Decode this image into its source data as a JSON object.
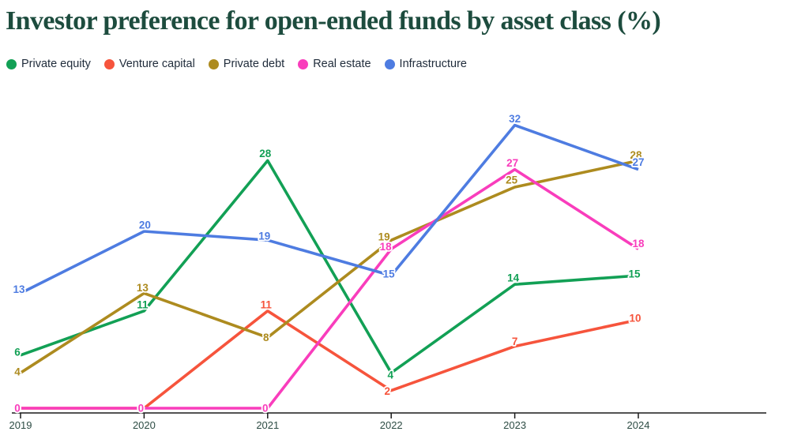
{
  "title": "Investor preference for open-ended funds by asset class (%)",
  "chart_data": {
    "type": "line",
    "x": [
      "2019",
      "2020",
      "2021",
      "2022",
      "2023",
      "2024"
    ],
    "series": [
      {
        "name": "Private equity",
        "color": "#12a055",
        "values": [
          6,
          11,
          28,
          4,
          14,
          15
        ]
      },
      {
        "name": "Venture capital",
        "color": "#f6543c",
        "values": [
          0,
          0,
          11,
          2,
          7,
          10
        ]
      },
      {
        "name": "Private debt",
        "color": "#ad8b1f",
        "values": [
          4,
          13,
          8,
          19,
          25,
          28
        ]
      },
      {
        "name": "Real estate",
        "color": "#f93dbc",
        "values": [
          0,
          0,
          0,
          18,
          27,
          18
        ]
      },
      {
        "name": "Infrastructure",
        "color": "#4e7ce1",
        "values": [
          13,
          20,
          19,
          15,
          32,
          27
        ]
      }
    ],
    "ylim": [
      0,
      35
    ],
    "grid": false,
    "legend_position": "top-left",
    "value_labels_shown": true,
    "label_offsets": [
      [
        [
          -4,
          -4
        ],
        [
          -2,
          -8
        ],
        [
          -3,
          -9
        ],
        [
          -1,
          3
        ],
        [
          -2,
          -8
        ],
        [
          -5,
          -2
        ]
      ],
      [
        [
          -4,
          0
        ],
        [
          -4,
          0
        ],
        [
          -2,
          -8
        ],
        [
          -5,
          1
        ],
        [
          0,
          -6
        ],
        [
          -4,
          -2
        ]
      ],
      [
        [
          -4,
          -1
        ],
        [
          -2,
          -7
        ],
        [
          -2,
          0
        ],
        [
          -9,
          -4
        ],
        [
          -4,
          -9
        ],
        [
          -3,
          -7
        ]
      ],
      [
        [
          -4,
          0
        ],
        [
          -4,
          0
        ],
        [
          -3,
          0
        ],
        [
          -7,
          -3
        ],
        [
          -3,
          -8
        ],
        [
          0,
          -7
        ]
      ],
      [
        [
          -2,
          -5
        ],
        [
          1,
          -8
        ],
        [
          -4,
          -5
        ],
        [
          -3,
          -2
        ],
        [
          0,
          -8
        ],
        [
          0,
          -9
        ]
      ]
    ],
    "colors": {
      "axis_line": "#1a1a1a",
      "tick_label": "#2d4c44"
    }
  },
  "styles": {
    "title_color": "#1d4c3e",
    "legend_text_color": "#1f2b3a",
    "background": "#ffffff"
  }
}
